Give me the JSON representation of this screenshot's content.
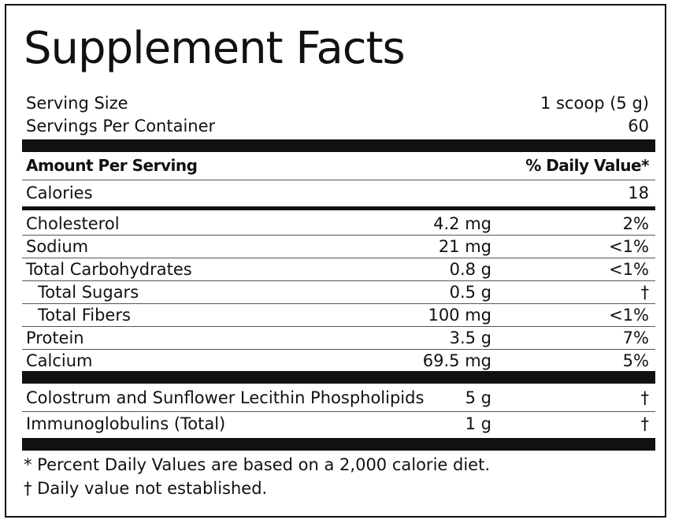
{
  "title": "Supplement Facts",
  "serving": {
    "size_label": "Serving Size",
    "size_value": "1 scoop (5 g)",
    "per_container_label": "Servings Per Container",
    "per_container_value": "60"
  },
  "header": {
    "amount_label": "Amount Per Serving",
    "dv_label": "% Daily Value*"
  },
  "calories": {
    "label": "Calories",
    "value": "18"
  },
  "nutrients": [
    {
      "name": "Cholesterol",
      "amount": "4.2 mg",
      "dv": "2%"
    },
    {
      "name": "Sodium",
      "amount": "21 mg",
      "dv": "<1%"
    },
    {
      "name": "Total Carbohydrates",
      "amount": "0.8 g",
      "dv": "<1%"
    },
    {
      "name": "Total Sugars",
      "amount": "0.5 g",
      "dv": "†"
    },
    {
      "name": "Total Fibers",
      "amount": "100 mg",
      "dv": "<1%"
    },
    {
      "name": "Protein",
      "amount": "3.5 g",
      "dv": "7%"
    },
    {
      "name": "Calcium",
      "amount": "69.5 mg",
      "dv": "5%"
    }
  ],
  "other_ingredients": [
    {
      "name": "Colostrum and Sunflower Lecithin Phospholipids",
      "amount": "5 g",
      "dv": "†"
    },
    {
      "name": "Immunoglobulins (Total)",
      "amount": "1 g",
      "dv": "†"
    }
  ],
  "footnotes": [
    "* Percent Daily Values are based on a 2,000 calorie diet.",
    "† Daily value not established."
  ]
}
